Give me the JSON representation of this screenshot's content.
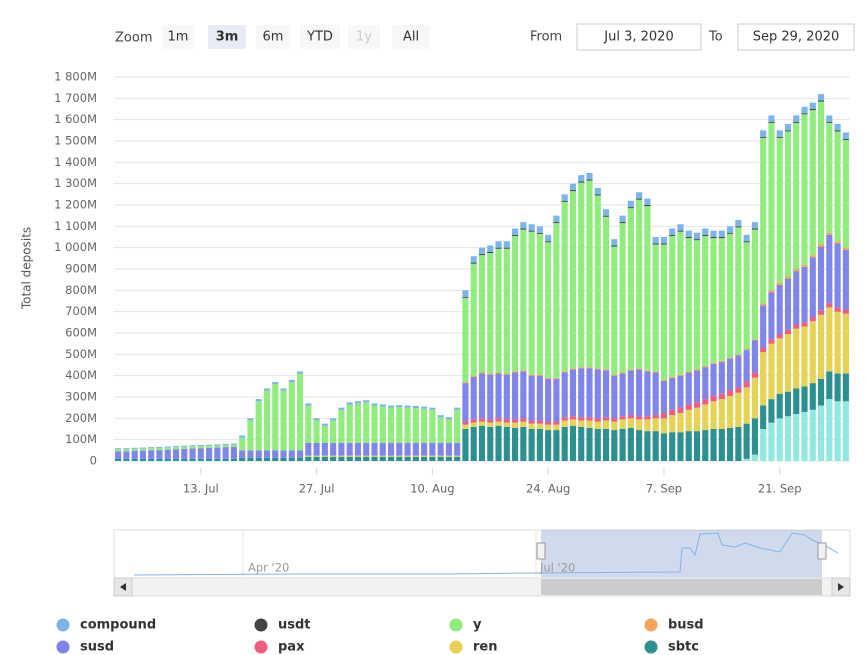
{
  "range_selector": {
    "label": "Zoom",
    "buttons": [
      {
        "text": "1m"
      },
      {
        "text": "3m",
        "selected": true
      },
      {
        "text": "6m"
      },
      {
        "text": "YTD"
      },
      {
        "text": "1y",
        "disabled": true
      },
      {
        "text": "All"
      }
    ],
    "from_label": "From",
    "from": "Jul 3, 2020",
    "to_label": "To",
    "to": "Sep 29, 2020"
  },
  "navigator": {
    "labels": [
      "Apr '20",
      "Jul '20"
    ]
  },
  "chart_data": {
    "type": "stacked-bar",
    "ylabel": "Total deposits",
    "x": [
      "2020-07-03",
      "2020-07-04",
      "2020-07-05",
      "2020-07-06",
      "2020-07-07",
      "2020-07-08",
      "2020-07-09",
      "2020-07-10",
      "2020-07-11",
      "2020-07-12",
      "2020-07-13",
      "2020-07-14",
      "2020-07-15",
      "2020-07-16",
      "2020-07-17",
      "2020-07-18",
      "2020-07-19",
      "2020-07-20",
      "2020-07-21",
      "2020-07-22",
      "2020-07-23",
      "2020-07-24",
      "2020-07-25",
      "2020-07-26",
      "2020-07-27",
      "2020-07-28",
      "2020-07-29",
      "2020-07-30",
      "2020-07-31",
      "2020-08-01",
      "2020-08-02",
      "2020-08-03",
      "2020-08-04",
      "2020-08-05",
      "2020-08-06",
      "2020-08-07",
      "2020-08-08",
      "2020-08-09",
      "2020-08-10",
      "2020-08-11",
      "2020-08-12",
      "2020-08-13",
      "2020-08-14",
      "2020-08-15",
      "2020-08-16",
      "2020-08-17",
      "2020-08-18",
      "2020-08-19",
      "2020-08-20",
      "2020-08-21",
      "2020-08-22",
      "2020-08-23",
      "2020-08-24",
      "2020-08-25",
      "2020-08-26",
      "2020-08-27",
      "2020-08-28",
      "2020-08-29",
      "2020-08-30",
      "2020-08-31",
      "2020-09-01",
      "2020-09-02",
      "2020-09-03",
      "2020-09-04",
      "2020-09-05",
      "2020-09-06",
      "2020-09-07",
      "2020-09-08",
      "2020-09-09",
      "2020-09-10",
      "2020-09-11",
      "2020-09-12",
      "2020-09-13",
      "2020-09-14",
      "2020-09-15",
      "2020-09-16",
      "2020-09-17",
      "2020-09-18",
      "2020-09-19",
      "2020-09-20",
      "2020-09-21",
      "2020-09-22",
      "2020-09-23",
      "2020-09-24",
      "2020-09-25",
      "2020-09-26",
      "2020-09-27",
      "2020-09-28",
      "2020-09-29"
    ],
    "xticks": [
      {
        "value": "2020-07-13",
        "label": "13. Jul"
      },
      {
        "value": "2020-07-27",
        "label": "27. Jul"
      },
      {
        "value": "2020-08-10",
        "label": "10. Aug"
      },
      {
        "value": "2020-08-24",
        "label": "24. Aug"
      },
      {
        "value": "2020-09-07",
        "label": "7. Sep"
      },
      {
        "value": "2020-09-21",
        "label": "21. Sep"
      }
    ],
    "ylim": [
      0,
      1800
    ],
    "yticks": [
      0,
      {
        "value": 100,
        "label": "100M"
      },
      {
        "value": 200,
        "label": "200M"
      },
      {
        "value": 300,
        "label": "300M"
      },
      {
        "value": 400,
        "label": "400M"
      },
      {
        "value": 500,
        "label": "500M"
      },
      {
        "value": 600,
        "label": "600M"
      },
      {
        "value": 700,
        "label": "700M"
      },
      {
        "value": 800,
        "label": "800M"
      },
      {
        "value": 900,
        "label": "900M"
      },
      {
        "value": 1000,
        "label": "1 000M"
      },
      {
        "value": 1100,
        "label": "1 100M"
      },
      {
        "value": 1200,
        "label": "1 200M"
      },
      {
        "value": 1300,
        "label": "1 300M"
      },
      {
        "value": 1400,
        "label": "1 400M"
      },
      {
        "value": 1500,
        "label": "1 500M"
      },
      {
        "value": 1600,
        "label": "1 600M"
      },
      {
        "value": 1700,
        "label": "1 700M"
      },
      {
        "value": 1800,
        "label": "1 800M"
      }
    ],
    "grid": true,
    "series": [
      {
        "name": "compound",
        "color": "#7cb5ec",
        "values": [
          5,
          5,
          5,
          5,
          5,
          5,
          5,
          5,
          5,
          5,
          5,
          5,
          5,
          5,
          5,
          10,
          10,
          10,
          10,
          10,
          10,
          10,
          10,
          10,
          10,
          10,
          10,
          10,
          10,
          10,
          10,
          10,
          10,
          10,
          10,
          10,
          10,
          10,
          10,
          10,
          10,
          10,
          30,
          30,
          30,
          30,
          30,
          30,
          30,
          30,
          30,
          30,
          30,
          30,
          30,
          30,
          30,
          30,
          30,
          30,
          30,
          30,
          30,
          30,
          30,
          30,
          30,
          30,
          30,
          30,
          30,
          30,
          30,
          30,
          30,
          30,
          30,
          30,
          30,
          30,
          30,
          30,
          30,
          30,
          30,
          30,
          30,
          30,
          30
        ]
      },
      {
        "name": "usdt",
        "color": "#434348",
        "values": [
          0,
          0,
          0,
          0,
          0,
          0,
          0,
          0,
          0,
          0,
          0,
          0,
          0,
          0,
          0,
          0,
          0,
          0,
          0,
          0,
          0,
          0,
          0,
          0,
          0,
          0,
          0,
          0,
          0,
          0,
          0,
          0,
          0,
          0,
          0,
          0,
          0,
          0,
          0,
          0,
          0,
          0,
          5,
          5,
          5,
          5,
          5,
          5,
          5,
          5,
          5,
          5,
          5,
          5,
          5,
          5,
          5,
          5,
          5,
          5,
          5,
          5,
          5,
          5,
          5,
          5,
          5,
          5,
          5,
          5,
          5,
          5,
          5,
          5,
          5,
          5,
          5,
          5,
          5,
          5,
          5,
          5,
          5,
          5,
          5,
          5,
          5,
          5,
          5
        ]
      },
      {
        "name": "y",
        "color": "#90ed7d",
        "values": [
          10,
          10,
          10,
          10,
          10,
          10,
          10,
          10,
          10,
          10,
          10,
          10,
          10,
          10,
          10,
          60,
          140,
          230,
          280,
          310,
          280,
          320,
          360,
          175,
          105,
          80,
          105,
          155,
          180,
          185,
          190,
          175,
          170,
          165,
          167,
          165,
          163,
          160,
          155,
          120,
          110,
          155,
          395,
          525,
          550,
          565,
          580,
          585,
          635,
          660,
          670,
          660,
          635,
          725,
          795,
          830,
          865,
          875,
          810,
          715,
          600,
          700,
          755,
          790,
          770,
          595,
          635,
          660,
          670,
          625,
          605,
          610,
          585,
          575,
          580,
          595,
          500,
          515,
          775,
          785,
          680,
          680,
          685,
          705,
          680,
          670,
          515,
          515,
          505
        ]
      },
      {
        "name": "busd",
        "color": "#f7a35c",
        "values": [
          0,
          0,
          0,
          0,
          0,
          0,
          0,
          0,
          0,
          0,
          0,
          0,
          0,
          0,
          0,
          0,
          0,
          0,
          0,
          0,
          0,
          0,
          0,
          0,
          0,
          0,
          0,
          0,
          0,
          0,
          0,
          0,
          0,
          0,
          0,
          0,
          0,
          0,
          0,
          0,
          0,
          0,
          5,
          5,
          5,
          5,
          5,
          5,
          5,
          5,
          5,
          5,
          5,
          5,
          5,
          5,
          5,
          5,
          5,
          5,
          5,
          5,
          5,
          5,
          5,
          5,
          5,
          5,
          5,
          5,
          5,
          5,
          5,
          5,
          5,
          5,
          5,
          5,
          10,
          10,
          10,
          10,
          10,
          10,
          10,
          10,
          10,
          10,
          10
        ]
      },
      {
        "name": "susd",
        "color": "#8085e9",
        "values": [
          35,
          35,
          37,
          38,
          40,
          41,
          43,
          45,
          47,
          49,
          50,
          51,
          53,
          55,
          57,
          35,
          35,
          35,
          35,
          35,
          35,
          35,
          35,
          60,
          60,
          60,
          60,
          60,
          60,
          60,
          60,
          60,
          60,
          60,
          60,
          60,
          60,
          60,
          60,
          60,
          60,
          60,
          180,
          200,
          210,
          210,
          210,
          210,
          220,
          220,
          210,
          210,
          200,
          200,
          210,
          220,
          230,
          230,
          230,
          220,
          200,
          200,
          210,
          220,
          210,
          200,
          150,
          150,
          150,
          150,
          150,
          150,
          150,
          150,
          150,
          150,
          150,
          150,
          200,
          220,
          230,
          240,
          250,
          260,
          280,
          300,
          320,
          300,
          280
        ]
      },
      {
        "name": "pax",
        "color": "#f15c80",
        "values": [
          0,
          0,
          0,
          0,
          0,
          0,
          0,
          0,
          0,
          0,
          0,
          0,
          0,
          0,
          0,
          0,
          0,
          0,
          0,
          0,
          0,
          0,
          0,
          0,
          0,
          0,
          0,
          0,
          0,
          0,
          0,
          0,
          0,
          0,
          0,
          0,
          0,
          0,
          0,
          0,
          0,
          0,
          15,
          15,
          15,
          15,
          15,
          15,
          15,
          15,
          15,
          15,
          15,
          15,
          15,
          15,
          15,
          15,
          15,
          15,
          15,
          15,
          15,
          15,
          15,
          15,
          25,
          25,
          25,
          25,
          25,
          25,
          25,
          25,
          25,
          25,
          25,
          25,
          20,
          20,
          20,
          20,
          20,
          20,
          20,
          20,
          20,
          20,
          20
        ]
      },
      {
        "name": "ren",
        "color": "#e4d354",
        "values": [
          0,
          0,
          0,
          0,
          0,
          0,
          0,
          0,
          0,
          0,
          0,
          0,
          0,
          0,
          0,
          0,
          0,
          0,
          0,
          0,
          0,
          0,
          0,
          5,
          5,
          5,
          5,
          5,
          5,
          5,
          5,
          5,
          5,
          5,
          5,
          5,
          5,
          5,
          5,
          5,
          5,
          5,
          20,
          20,
          20,
          20,
          20,
          20,
          25,
          25,
          25,
          25,
          25,
          25,
          30,
          30,
          30,
          35,
          35,
          40,
          40,
          45,
          45,
          50,
          55,
          60,
          70,
          80,
          90,
          100,
          110,
          120,
          130,
          140,
          150,
          160,
          170,
          190,
          250,
          260,
          260,
          270,
          280,
          280,
          290,
          300,
          300,
          290,
          280
        ]
      },
      {
        "name": "sbtc",
        "color": "#2b908f",
        "values": [
          10,
          10,
          10,
          10,
          10,
          10,
          10,
          10,
          10,
          10,
          10,
          10,
          10,
          10,
          10,
          15,
          15,
          15,
          15,
          15,
          15,
          15,
          15,
          20,
          20,
          20,
          20,
          20,
          20,
          20,
          20,
          20,
          20,
          20,
          20,
          20,
          20,
          20,
          20,
          20,
          20,
          20,
          150,
          160,
          165,
          160,
          165,
          160,
          155,
          160,
          150,
          150,
          145,
          145,
          160,
          165,
          160,
          155,
          150,
          150,
          145,
          150,
          155,
          145,
          140,
          140,
          130,
          135,
          135,
          140,
          140,
          145,
          150,
          150,
          155,
          160,
          165,
          170,
          110,
          110,
          115,
          115,
          120,
          120,
          125,
          125,
          130,
          130,
          130
        ]
      },
      {
        "color": "#91e8e1",
        "values": [
          0,
          0,
          0,
          0,
          0,
          0,
          0,
          0,
          0,
          0,
          0,
          0,
          0,
          0,
          0,
          0,
          0,
          0,
          0,
          0,
          0,
          0,
          0,
          0,
          0,
          0,
          0,
          0,
          0,
          0,
          0,
          0,
          0,
          0,
          0,
          0,
          0,
          0,
          0,
          0,
          0,
          0,
          0,
          0,
          0,
          0,
          0,
          0,
          0,
          0,
          0,
          0,
          0,
          0,
          0,
          0,
          0,
          0,
          0,
          0,
          0,
          0,
          0,
          0,
          0,
          0,
          0,
          0,
          0,
          0,
          0,
          0,
          0,
          0,
          0,
          0,
          10,
          30,
          150,
          180,
          200,
          210,
          220,
          230,
          240,
          260,
          290,
          280,
          280
        ]
      }
    ]
  }
}
